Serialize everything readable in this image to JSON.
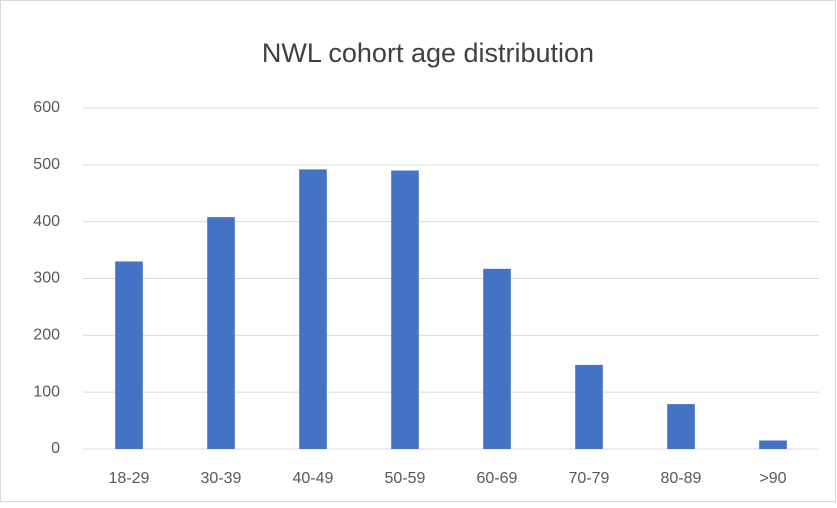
{
  "chart_data": {
    "type": "bar",
    "title": "NWL cohort age distribution",
    "categories": [
      "18-29",
      "30-39",
      "40-49",
      "50-59",
      "60-69",
      "70-79",
      "80-89",
      ">90"
    ],
    "values": [
      330,
      408,
      492,
      490,
      317,
      148,
      79,
      15
    ],
    "color": "#4472c4",
    "ylim": [
      0,
      600
    ],
    "yticks": [
      0,
      100,
      200,
      300,
      400,
      500,
      600
    ],
    "grid": true
  }
}
